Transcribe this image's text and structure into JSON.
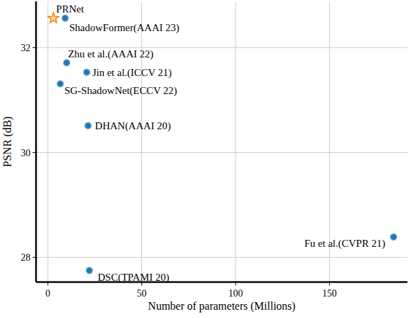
{
  "chart_data": {
    "type": "scatter",
    "x_label": "Number of parameters (Millions)",
    "y_label": "PSNR (dB)",
    "xlim": [
      -6.3,
      191.5
    ],
    "ylim": [
      27.53,
      32.88
    ],
    "xticks": [
      0,
      50,
      100,
      150
    ],
    "yticks": [
      28,
      30,
      32
    ],
    "grid": true,
    "series": [
      {
        "marker": "star",
        "color": "#ff7f0e",
        "x": [
          2.95
        ],
        "values": [
          32.56
        ],
        "labels": [
          "PRNet"
        ]
      },
      {
        "marker": "circle",
        "color": "#1f77b4",
        "x": [
          9.2,
          10.0,
          20.7,
          6.6,
          21.4,
          184.1,
          22.1
        ],
        "values": [
          32.56,
          31.71,
          31.53,
          31.31,
          30.51,
          28.39,
          27.75
        ],
        "labels": [
          "ShadowFormer(AAAI 23)",
          "Zhu et al.(AAAI 22)",
          "Jin et al.(ICCV 21)",
          "SG-ShadowNet(ECCV 22)",
          "DHAN(AAAI 20)",
          "Fu et al.(CVPR 21)",
          "DSC(TPAMI 20)"
        ]
      }
    ]
  }
}
